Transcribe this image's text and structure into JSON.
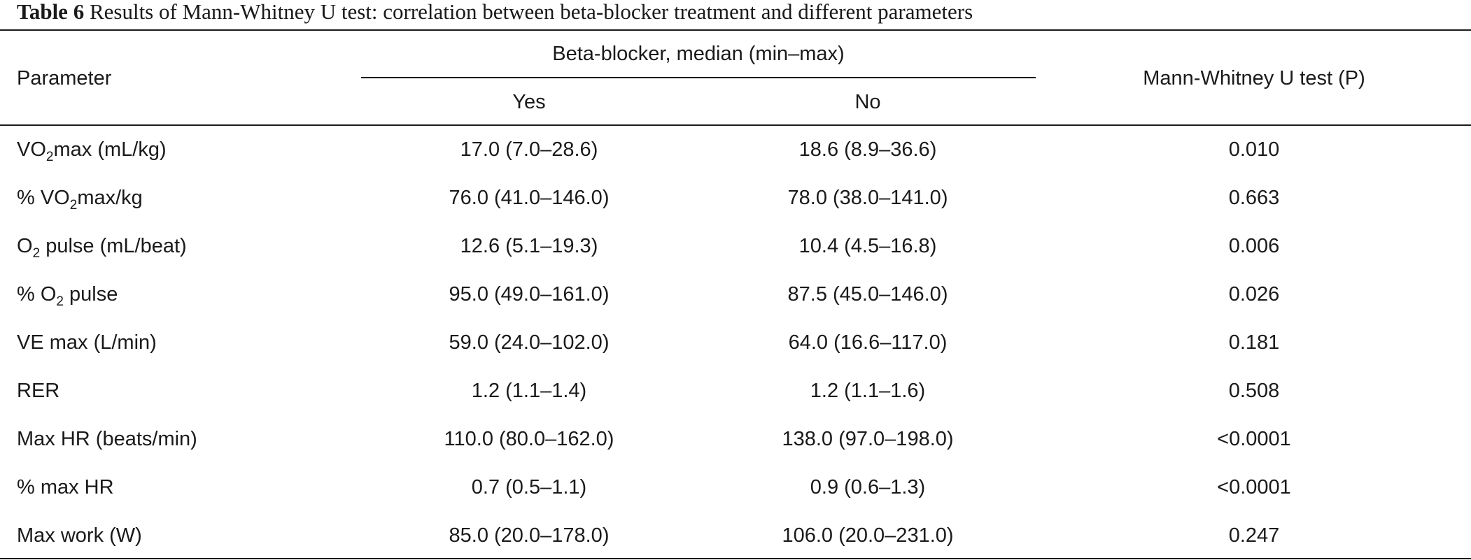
{
  "caption": {
    "label": "Table 6",
    "text": " Results of Mann-Whitney U test: correlation between beta-blocker treatment and different parameters"
  },
  "header": {
    "parameter": "Parameter",
    "group": "Beta-blocker, median (min–max)",
    "yes": "Yes",
    "no": "No",
    "test": "Mann-Whitney U test (P)"
  },
  "rows": [
    {
      "param": {
        "pre": "VO",
        "sub": "2",
        "post": "max (mL/kg)"
      },
      "yes": "17.0 (7.0–28.6)",
      "no": "18.6 (8.9–36.6)",
      "p": "0.010"
    },
    {
      "param": {
        "pre": "% VO",
        "sub": "2",
        "post": "max/kg"
      },
      "yes": "76.0 (41.0–146.0)",
      "no": "78.0 (38.0–141.0)",
      "p": "0.663"
    },
    {
      "param": {
        "pre": "O",
        "sub": "2",
        "post": " pulse (mL/beat)"
      },
      "yes": "12.6 (5.1–19.3)",
      "no": "10.4 (4.5–16.8)",
      "p": "0.006"
    },
    {
      "param": {
        "pre": "% O",
        "sub": "2",
        "post": " pulse"
      },
      "yes": "95.0 (49.0–161.0)",
      "no": "87.5 (45.0–146.0)",
      "p": "0.026"
    },
    {
      "param": {
        "pre": "VE max (L/min)",
        "sub": "",
        "post": ""
      },
      "yes": "59.0 (24.0–102.0)",
      "no": "64.0 (16.6–117.0)",
      "p": "0.181"
    },
    {
      "param": {
        "pre": "RER",
        "sub": "",
        "post": ""
      },
      "yes": "1.2 (1.1–1.4)",
      "no": "1.2 (1.1–1.6)",
      "p": "0.508"
    },
    {
      "param": {
        "pre": "Max HR (beats/min)",
        "sub": "",
        "post": ""
      },
      "yes": "110.0 (80.0–162.0)",
      "no": "138.0 (97.0–198.0)",
      "p": "<0.0001"
    },
    {
      "param": {
        "pre": "% max HR",
        "sub": "",
        "post": ""
      },
      "yes": "0.7 (0.5–1.1)",
      "no": "0.9 (0.6–1.3)",
      "p": "<0.0001"
    },
    {
      "param": {
        "pre": "Max work (W)",
        "sub": "",
        "post": ""
      },
      "yes": "85.0 (20.0–178.0)",
      "no": "106.0 (20.0–231.0)",
      "p": "0.247"
    }
  ]
}
